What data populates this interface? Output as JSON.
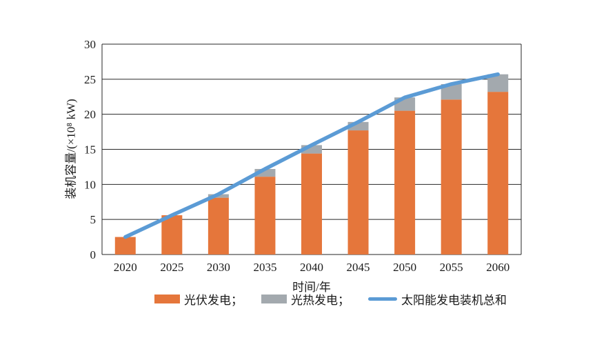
{
  "chart_data": {
    "type": "bar",
    "variant": "stacked-columns-with-total-line",
    "title": "",
    "xlabel": "时间/年",
    "ylabel": "装机容量/(×10⁸ kW)",
    "categories": [
      "2020",
      "2025",
      "2030",
      "2035",
      "2040",
      "2045",
      "2050",
      "2055",
      "2060"
    ],
    "series": [
      {
        "name": "光伏发电",
        "type": "bar",
        "stack": "capacity",
        "color": "#E5763B",
        "values": [
          2.5,
          5.6,
          8.1,
          11.1,
          14.4,
          17.7,
          20.5,
          22.1,
          23.2
        ]
      },
      {
        "name": "光热发电",
        "type": "bar",
        "stack": "capacity",
        "color": "#A3A9AE",
        "values": [
          0,
          0,
          0.5,
          1.1,
          1.2,
          1.2,
          1.9,
          2.2,
          2.5
        ]
      },
      {
        "name": "太阳能发电装机总和",
        "type": "line",
        "color": "#5B9BD5",
        "values": [
          2.5,
          5.6,
          8.6,
          12.2,
          15.6,
          18.9,
          22.4,
          24.3,
          25.7
        ]
      }
    ],
    "ylim": [
      0,
      30
    ],
    "yticks": [
      0,
      5,
      10,
      15,
      20,
      25,
      30
    ],
    "grid": "horizontal",
    "legend_position": "bottom",
    "legend_labels": [
      "光伏发电；",
      "光热发电；",
      "太阳能发电装机总和"
    ]
  },
  "colors": {
    "axis": "#262626",
    "text": "#1a1a1a",
    "background": "#ffffff"
  }
}
